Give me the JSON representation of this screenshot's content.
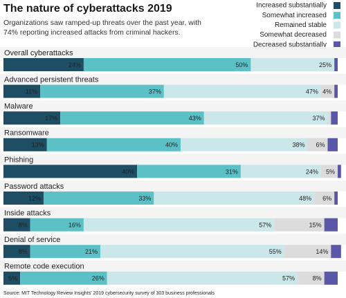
{
  "chart_data": {
    "type": "stacked-bar-horizontal",
    "title": "The nature of cyberattacks 2019",
    "subtitle": "Organizations saw ramped-up threats over the past year, with 74% reporting increased attacks from criminal hackers.",
    "source": "Source: MIT Technology Review Insights' 2019 cybersecurity survey of 303 business professionals",
    "legend": "top-right",
    "xlim": [
      0,
      100
    ],
    "categories": [
      "Overall cyberattacks",
      "Advanced persistent threats",
      "Malware",
      "Ransomware",
      "Phishing",
      "Password attacks",
      "Inside attacks",
      "Denial of service",
      "Remote code execution"
    ],
    "series": [
      {
        "name": "Increased substantially",
        "color": "#1d4e63",
        "values": [
          24,
          11,
          17,
          13,
          40,
          12,
          8,
          8,
          5
        ],
        "value_labels": [
          "24%",
          "11%",
          "17%",
          "13%",
          "40%",
          "12%",
          "8%",
          "8%",
          "5%"
        ]
      },
      {
        "name": "Somewhat increased",
        "color": "#5cc0c7",
        "values": [
          50,
          37,
          43,
          40,
          31,
          33,
          16,
          21,
          26
        ],
        "value_labels": [
          "50%",
          "37%",
          "43%",
          "40%",
          "31%",
          "33%",
          "16%",
          "21%",
          "26%"
        ]
      },
      {
        "name": "Remained stable",
        "color": "#cbe7ea",
        "values": [
          25,
          47,
          37,
          38,
          24,
          48,
          57,
          55,
          57
        ],
        "value_labels": [
          "25%",
          "47%",
          "37%",
          "38%",
          "24%",
          "48%",
          "57%",
          "55%",
          "57%"
        ]
      },
      {
        "name": "Somewhat decreased",
        "color": "#dcdcdc",
        "values": [
          0,
          4,
          1,
          6,
          5,
          6,
          15,
          14,
          8
        ],
        "value_labels": [
          null,
          "4%",
          null,
          "6%",
          "5%",
          "6%",
          "15%",
          "14%",
          "8%"
        ]
      },
      {
        "name": "Decreased substantially",
        "color": "#5a57a8",
        "values": [
          1,
          1,
          2,
          3,
          1,
          1,
          4,
          3,
          4
        ],
        "value_labels": [
          null,
          null,
          null,
          null,
          null,
          null,
          null,
          null,
          null
        ]
      }
    ]
  }
}
